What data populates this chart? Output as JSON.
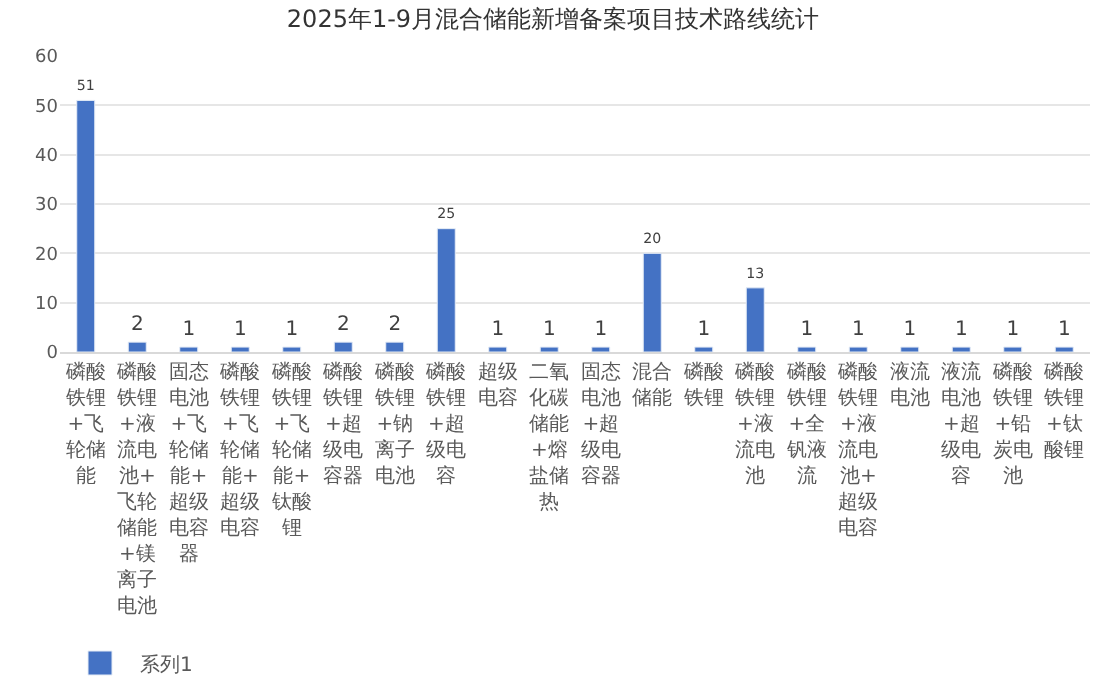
{
  "chart_data": {
    "type": "bar",
    "title": "2025年1-9月混合储能新增备案项目技术路线统计",
    "categories": [
      "磷酸铁锂+飞轮储能",
      "磷酸铁锂+液流电池+飞轮储能+镁离子电池",
      "固态电池+飞轮储能+超级电容器",
      "磷酸铁锂+飞轮储能+超级电容",
      "磷酸铁锂+飞轮储能+钛酸锂",
      "磷酸铁锂+超级电容器",
      "磷酸铁锂+钠离子电池",
      "磷酸铁锂+超级电容",
      "超级电容",
      "二氧化碳储能+熔盐储热",
      "固态电池+超级电容器",
      "混合储能",
      "磷酸铁锂",
      "磷酸铁锂+液流电池",
      "磷酸铁锂+全钒液流",
      "磷酸铁锂+液流电池+超级电容",
      "液流电池",
      "液流电池+超级电容",
      "磷酸铁锂+铅炭电池",
      "磷酸铁锂+钛酸锂"
    ],
    "series": [
      {
        "name": "系列1",
        "color": "#4472c4",
        "values": [
          51,
          2,
          1,
          1,
          1,
          2,
          2,
          25,
          1,
          1,
          1,
          20,
          1,
          13,
          1,
          1,
          1,
          1,
          1,
          1
        ]
      }
    ],
    "ylim": [
      0,
      60
    ],
    "yticks": [
      0,
      10,
      20,
      30,
      40,
      50,
      60
    ],
    "grid": "y",
    "data_labels": true,
    "legend": "bottom left"
  }
}
